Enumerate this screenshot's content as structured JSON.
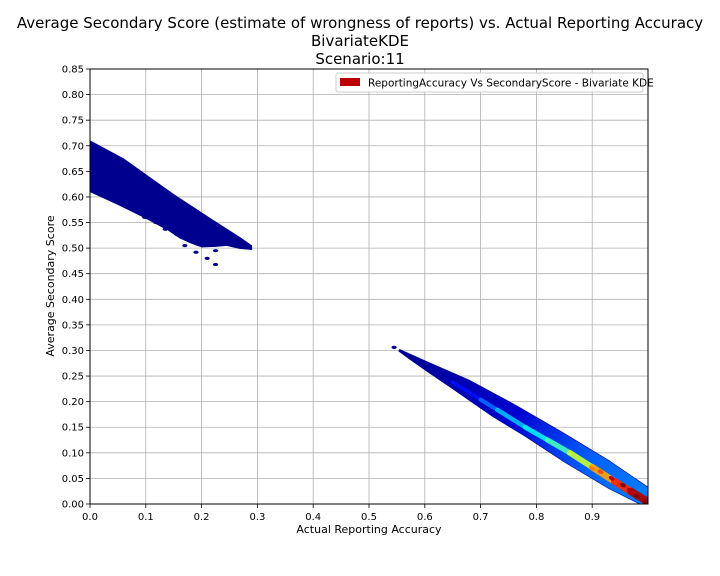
{
  "chart_data": {
    "type": "heatmap",
    "title": "Average Secondary Score (estimate of wrongness of reports) vs. Actual Reporting Accuracy",
    "subtitle_lines": [
      "BivariateKDE",
      "Scenario:11"
    ],
    "xlabel": "Actual Reporting Accuracy",
    "ylabel": "Average Secondary Score",
    "xlim": [
      0.0,
      1.0
    ],
    "ylim": [
      0.0,
      0.85
    ],
    "x_ticks": [
      0.0,
      0.1,
      0.2,
      0.3,
      0.4,
      0.5,
      0.6,
      0.7,
      0.8,
      0.9
    ],
    "x_tick_labels": [
      "0.0",
      "0.1",
      "0.2",
      "0.3",
      "0.4",
      "0.5",
      "0.6",
      "0.7",
      "0.8",
      "0.9"
    ],
    "y_ticks": [
      0.0,
      0.05,
      0.1,
      0.15,
      0.2,
      0.25,
      0.3,
      0.35,
      0.4,
      0.45,
      0.5,
      0.55,
      0.6,
      0.65,
      0.7,
      0.75,
      0.8,
      0.85
    ],
    "y_tick_labels": [
      "0.00",
      "0.05",
      "0.10",
      "0.15",
      "0.20",
      "0.25",
      "0.30",
      "0.35",
      "0.40",
      "0.45",
      "0.50",
      "0.55",
      "0.60",
      "0.65",
      "0.70",
      "0.75",
      "0.80",
      "0.85"
    ],
    "grid": true,
    "legend": {
      "position": "top-right",
      "entries": [
        {
          "label": "ReportingAccuracy Vs SecondaryScore - Bivariate KDE",
          "color": "#bf0000"
        }
      ]
    },
    "colormap": "jet",
    "density_regions": [
      {
        "name": "upper-left-cluster",
        "outline": [
          [
            0.0,
            0.71
          ],
          [
            0.06,
            0.675
          ],
          [
            0.15,
            0.605
          ],
          [
            0.22,
            0.555
          ],
          [
            0.27,
            0.52
          ],
          [
            0.29,
            0.505
          ],
          [
            0.29,
            0.497
          ],
          [
            0.268,
            0.499
          ],
          [
            0.245,
            0.505
          ],
          [
            0.225,
            0.503
          ],
          [
            0.2,
            0.502
          ],
          [
            0.18,
            0.51
          ],
          [
            0.16,
            0.52
          ],
          [
            0.14,
            0.535
          ],
          [
            0.1,
            0.558
          ],
          [
            0.05,
            0.585
          ],
          [
            0.0,
            0.61
          ]
        ],
        "peak_level": 0.08
      },
      {
        "name": "lower-right-band",
        "outline": [
          [
            0.555,
            0.302
          ],
          [
            0.6,
            0.28
          ],
          [
            0.68,
            0.242
          ],
          [
            0.76,
            0.195
          ],
          [
            0.85,
            0.138
          ],
          [
            0.93,
            0.085
          ],
          [
            1.0,
            0.033
          ],
          [
            1.0,
            0.0
          ],
          [
            0.985,
            0.0
          ],
          [
            0.93,
            0.03
          ],
          [
            0.85,
            0.082
          ],
          [
            0.78,
            0.132
          ],
          [
            0.72,
            0.172
          ],
          [
            0.65,
            0.225
          ],
          [
            0.6,
            0.262
          ],
          [
            0.57,
            0.285
          ],
          [
            0.553,
            0.299
          ]
        ],
        "peak_level": 1.0
      }
    ],
    "ridge": [
      {
        "x": 0.56,
        "y": 0.3,
        "level": 0.05
      },
      {
        "x": 0.6,
        "y": 0.272,
        "level": 0.05
      },
      {
        "x": 0.65,
        "y": 0.238,
        "level": 0.1
      },
      {
        "x": 0.7,
        "y": 0.204,
        "level": 0.18
      },
      {
        "x": 0.73,
        "y": 0.184,
        "level": 0.28
      },
      {
        "x": 0.78,
        "y": 0.15,
        "level": 0.34
      },
      {
        "x": 0.82,
        "y": 0.125,
        "level": 0.38
      },
      {
        "x": 0.86,
        "y": 0.1,
        "level": 0.5
      },
      {
        "x": 0.9,
        "y": 0.072,
        "level": 0.64
      },
      {
        "x": 0.94,
        "y": 0.044,
        "level": 0.78
      },
      {
        "x": 0.97,
        "y": 0.024,
        "level": 0.9
      },
      {
        "x": 1.0,
        "y": 0.004,
        "level": 1.0
      }
    ],
    "hotspots": [
      {
        "x": 0.9,
        "y": 0.07,
        "level": 0.75
      },
      {
        "x": 0.915,
        "y": 0.063,
        "level": 0.8
      },
      {
        "x": 0.935,
        "y": 0.05,
        "level": 0.95
      },
      {
        "x": 0.955,
        "y": 0.037,
        "level": 1.0
      },
      {
        "x": 0.968,
        "y": 0.027,
        "level": 0.95
      },
      {
        "x": 0.98,
        "y": 0.015,
        "level": 1.0
      },
      {
        "x": 0.995,
        "y": 0.004,
        "level": 1.0
      }
    ],
    "specks": [
      {
        "x": 0.17,
        "y": 0.505
      },
      {
        "x": 0.19,
        "y": 0.492
      },
      {
        "x": 0.21,
        "y": 0.48
      },
      {
        "x": 0.225,
        "y": 0.495
      },
      {
        "x": 0.155,
        "y": 0.527
      },
      {
        "x": 0.135,
        "y": 0.537
      },
      {
        "x": 0.118,
        "y": 0.55
      },
      {
        "x": 0.098,
        "y": 0.56
      },
      {
        "x": 0.073,
        "y": 0.578
      },
      {
        "x": 0.05,
        "y": 0.592
      },
      {
        "x": 0.03,
        "y": 0.608
      },
      {
        "x": 0.022,
        "y": 0.62
      },
      {
        "x": 0.225,
        "y": 0.468
      },
      {
        "x": 0.545,
        "y": 0.306
      }
    ]
  }
}
